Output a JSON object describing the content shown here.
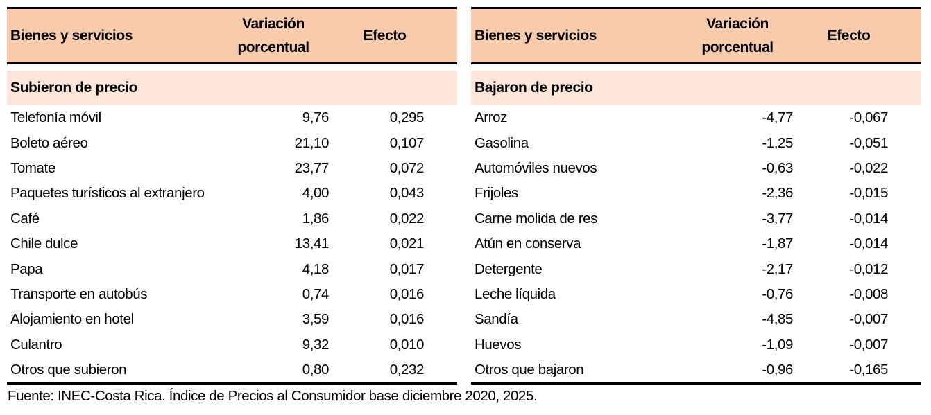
{
  "page": {
    "footer": "Fuente: INEC-Costa Rica. Índice de Precios al Consumidor base diciembre 2020, 2025."
  },
  "colors": {
    "header_fill": "#F8CBAD",
    "section_fill": "#FCE5D9",
    "rule": "#000000",
    "text": "#000000"
  },
  "columns": {
    "item": "Bienes y servicios",
    "variation": "Variación porcentual",
    "effect": "Efecto"
  },
  "tables": [
    {
      "section": "Subieron de precio",
      "rows": [
        {
          "item": "Telefonía móvil",
          "variation": "9,76",
          "effect": "0,295"
        },
        {
          "item": "Boleto aéreo",
          "variation": "21,10",
          "effect": "0,107"
        },
        {
          "item": "Tomate",
          "variation": "23,77",
          "effect": "0,072"
        },
        {
          "item": "Paquetes turísticos al extranjero",
          "variation": "4,00",
          "effect": "0,043"
        },
        {
          "item": "Café",
          "variation": "1,86",
          "effect": "0,022"
        },
        {
          "item": "Chile dulce",
          "variation": "13,41",
          "effect": "0,021"
        },
        {
          "item": "Papa",
          "variation": "4,18",
          "effect": "0,017"
        },
        {
          "item": "Transporte en autobús",
          "variation": "0,74",
          "effect": "0,016"
        },
        {
          "item": "Alojamiento en hotel",
          "variation": "3,59",
          "effect": "0,016"
        },
        {
          "item": "Culantro",
          "variation": "9,32",
          "effect": "0,010"
        },
        {
          "item": "Otros que subieron",
          "variation": "0,80",
          "effect": "0,232"
        }
      ]
    },
    {
      "section": "Bajaron de precio",
      "rows": [
        {
          "item": "Arroz",
          "variation": "-4,77",
          "effect": "-0,067"
        },
        {
          "item": "Gasolina",
          "variation": "-1,25",
          "effect": "-0,051"
        },
        {
          "item": "Automóviles nuevos",
          "variation": "-0,63",
          "effect": "-0,022"
        },
        {
          "item": "Frijoles",
          "variation": "-2,36",
          "effect": "-0,015"
        },
        {
          "item": "Carne molida de res",
          "variation": "-3,77",
          "effect": "-0,014"
        },
        {
          "item": "Atún en conserva",
          "variation": "-1,87",
          "effect": "-0,014"
        },
        {
          "item": "Detergente",
          "variation": "-2,17",
          "effect": "-0,012"
        },
        {
          "item": "Leche líquida",
          "variation": "-0,76",
          "effect": "-0,008"
        },
        {
          "item": "Sandía",
          "variation": "-4,85",
          "effect": "-0,007"
        },
        {
          "item": "Huevos",
          "variation": "-1,09",
          "effect": "-0,007"
        },
        {
          "item": "Otros que bajaron",
          "variation": "-0,96",
          "effect": "-0,165"
        }
      ]
    }
  ]
}
